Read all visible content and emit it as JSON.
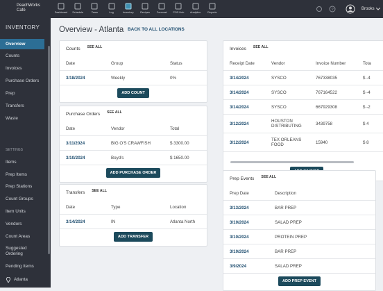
{
  "header": {
    "brand": [
      "PeachWorks",
      "Café"
    ],
    "nav": [
      "Dashboard",
      "Schedule",
      "Team",
      "Log",
      "Inventory",
      "Recipes",
      "Forecast",
      "POS Hub",
      "Analytics",
      "Reports"
    ],
    "user": "Brooks"
  },
  "sidebar": {
    "title": "INVENTORY",
    "items": [
      "Overview",
      "Counts",
      "Invoices",
      "Purchase Orders",
      "Prep",
      "Transfers",
      "Waste"
    ],
    "settings_title": "SETTINGS",
    "settings_items": [
      "Items",
      "Prep Items",
      "Prep Stations",
      "Count Groups",
      "Item Units",
      "Vendors",
      "Count Areas",
      "Suggested Ordering",
      "Pending Items"
    ],
    "location": "Atlanta"
  },
  "page": {
    "title": "Overview - Atlanta",
    "back_link": "BACK TO ALL LOCATIONS"
  },
  "cards": [
    {
      "title": "Counts",
      "see_all": "SEE ALL",
      "columns": [
        "Date",
        "Group",
        "Status"
      ],
      "rows": [
        [
          "3/18/2024",
          "Weekly",
          "0%"
        ]
      ],
      "button": "ADD COUNT"
    },
    {
      "title": "Purchase Orders",
      "see_all": "SEE ALL",
      "columns": [
        "Date",
        "Vendor",
        "Total"
      ],
      "rows": [
        [
          "3/11/2024",
          "BIG O'S CRAWFISH",
          "$ 3300.00"
        ],
        [
          "3/10/2024",
          "Boyd's",
          "$ 1650.00"
        ]
      ],
      "button": "ADD PURCHASE ORDER"
    },
    {
      "title": "Transfers",
      "see_all": "SEE ALL",
      "columns": [
        "Date",
        "Type",
        "Location"
      ],
      "rows": [
        [
          "3/14/2024",
          "IN",
          "Atlanta North"
        ]
      ],
      "button": "ADD TRANSFER"
    },
    {
      "title": "Invoices",
      "see_all": "SEE ALL",
      "columns": [
        "Receipt Date",
        "Vendor",
        "Invoice Number",
        "Tota"
      ],
      "rows": [
        [
          "3/14/2024",
          "SYSCO",
          "767338035",
          "$ -4"
        ],
        [
          "3/14/2024",
          "SYSCO",
          "767164522",
          "$ -4"
        ],
        [
          "3/14/2024",
          "SYSCO",
          "667929308",
          "$ -2"
        ],
        [
          "3/12/2024",
          "HOUSTON DISTRIBUTING",
          "3439758",
          "$ 4"
        ],
        [
          "3/12/2024",
          "TEX ORLEANS FOOD",
          "15940",
          "$ 8"
        ]
      ],
      "button": "ADD INVOICE"
    },
    {
      "title": "Prep Events",
      "see_all": "SEE ALL",
      "columns": [
        "Prep Date",
        "Description"
      ],
      "rows": [
        [
          "3/13/2024",
          "BAR PREP"
        ],
        [
          "3/10/2024",
          "SALAD PREP"
        ],
        [
          "3/10/2024",
          "PROTEIN PREP"
        ],
        [
          "3/10/2024",
          "BAR PREP"
        ],
        [
          "3/9/2024",
          "SALAD PREP"
        ]
      ],
      "button": "ADD PREP EVENT"
    }
  ]
}
